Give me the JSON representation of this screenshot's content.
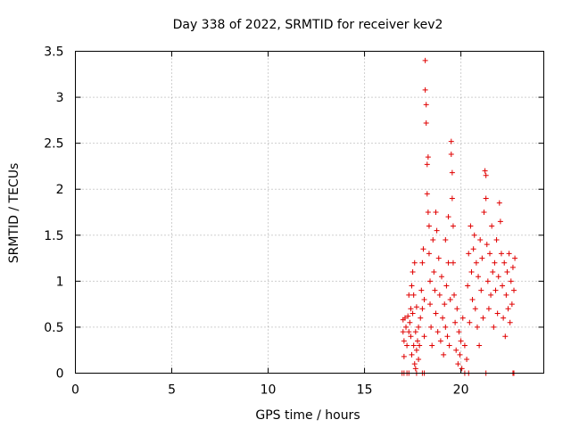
{
  "chart_data": {
    "type": "scatter",
    "title": "Day 338 of 2022, SRMTID for receiver kev2",
    "xlabel": "GPS time / hours",
    "ylabel": "SRMTID / TECUs",
    "xlim": [
      0,
      24.3
    ],
    "ylim": [
      0,
      3.5
    ],
    "xticks": [
      0,
      5,
      10,
      15,
      20
    ],
    "xtick_labels": [
      "0",
      "5",
      "10",
      "15",
      "20"
    ],
    "yticks": [
      0,
      0.5,
      1,
      1.5,
      2,
      2.5,
      3,
      3.5
    ],
    "ytick_labels": [
      "0",
      "0.5",
      "1",
      "1.5",
      "2",
      "2.5",
      "3",
      "3.5"
    ],
    "grid": true,
    "marker": "+",
    "color": "#e00000",
    "series": [
      {
        "name": "kev2",
        "points": [
          [
            16.95,
            0.0
          ],
          [
            17.05,
            0.0
          ],
          [
            17.2,
            0.0
          ],
          [
            17.3,
            0.0
          ],
          [
            17.7,
            0.0
          ],
          [
            18.0,
            0.0
          ],
          [
            18.1,
            0.0
          ],
          [
            20.2,
            0.0
          ],
          [
            20.4,
            0.0
          ],
          [
            21.3,
            0.0
          ],
          [
            22.7,
            0.0
          ],
          [
            22.75,
            0.0
          ],
          [
            17.0,
            0.58
          ],
          [
            17.0,
            0.45
          ],
          [
            17.05,
            0.35
          ],
          [
            17.05,
            0.18
          ],
          [
            17.1,
            0.6
          ],
          [
            17.15,
            0.5
          ],
          [
            17.2,
            0.3
          ],
          [
            17.25,
            0.62
          ],
          [
            17.3,
            0.45
          ],
          [
            17.3,
            0.85
          ],
          [
            17.35,
            0.55
          ],
          [
            17.4,
            0.7
          ],
          [
            17.4,
            0.4
          ],
          [
            17.45,
            0.95
          ],
          [
            17.45,
            0.2
          ],
          [
            17.5,
            1.1
          ],
          [
            17.5,
            0.65
          ],
          [
            17.55,
            0.85
          ],
          [
            17.55,
            0.3
          ],
          [
            17.6,
            1.2
          ],
          [
            17.6,
            0.1
          ],
          [
            17.65,
            0.05
          ],
          [
            17.65,
            0.45
          ],
          [
            17.7,
            0.72
          ],
          [
            17.7,
            0.25
          ],
          [
            17.75,
            0.35
          ],
          [
            17.8,
            0.5
          ],
          [
            17.8,
            0.15
          ],
          [
            17.85,
            0.3
          ],
          [
            17.9,
            0.6
          ],
          [
            17.95,
            0.9
          ],
          [
            18.0,
            1.2
          ],
          [
            18.0,
            0.7
          ],
          [
            18.05,
            1.35
          ],
          [
            18.1,
            0.4
          ],
          [
            18.1,
            0.8
          ],
          [
            18.15,
            3.4
          ],
          [
            18.15,
            3.08
          ],
          [
            18.2,
            2.92
          ],
          [
            18.2,
            2.72
          ],
          [
            18.25,
            2.27
          ],
          [
            18.25,
            1.95
          ],
          [
            18.3,
            2.35
          ],
          [
            18.3,
            1.75
          ],
          [
            18.35,
            1.6
          ],
          [
            18.35,
            1.3
          ],
          [
            18.4,
            1.0
          ],
          [
            18.4,
            0.75
          ],
          [
            18.45,
            0.5
          ],
          [
            18.5,
            0.3
          ],
          [
            18.55,
            1.45
          ],
          [
            18.6,
            1.1
          ],
          [
            18.65,
            0.9
          ],
          [
            18.7,
            1.75
          ],
          [
            18.7,
            0.65
          ],
          [
            18.75,
            1.55
          ],
          [
            18.8,
            0.45
          ],
          [
            18.85,
            1.25
          ],
          [
            18.9,
            0.85
          ],
          [
            18.95,
            0.35
          ],
          [
            19.0,
            1.05
          ],
          [
            19.05,
            0.6
          ],
          [
            19.1,
            0.2
          ],
          [
            19.15,
            0.75
          ],
          [
            19.2,
            1.45
          ],
          [
            19.2,
            0.5
          ],
          [
            19.25,
            0.95
          ],
          [
            19.3,
            0.4
          ],
          [
            19.35,
            1.7
          ],
          [
            19.35,
            1.2
          ],
          [
            19.4,
            0.3
          ],
          [
            19.45,
            0.8
          ],
          [
            19.5,
            2.52
          ],
          [
            19.5,
            2.38
          ],
          [
            19.55,
            2.18
          ],
          [
            19.55,
            1.9
          ],
          [
            19.6,
            1.6
          ],
          [
            19.6,
            1.2
          ],
          [
            19.65,
            0.85
          ],
          [
            19.7,
            0.55
          ],
          [
            19.75,
            0.25
          ],
          [
            19.8,
            0.7
          ],
          [
            19.85,
            0.1
          ],
          [
            19.9,
            0.45
          ],
          [
            19.95,
            0.2
          ],
          [
            20.0,
            0.35
          ],
          [
            20.05,
            0.05
          ],
          [
            20.1,
            0.6
          ],
          [
            20.2,
            0.3
          ],
          [
            20.3,
            0.15
          ],
          [
            20.35,
            0.95
          ],
          [
            20.4,
            1.3
          ],
          [
            20.45,
            0.55
          ],
          [
            20.5,
            1.6
          ],
          [
            20.55,
            1.1
          ],
          [
            20.6,
            0.8
          ],
          [
            20.65,
            1.35
          ],
          [
            20.7,
            1.5
          ],
          [
            20.75,
            0.7
          ],
          [
            20.8,
            1.2
          ],
          [
            20.85,
            0.5
          ],
          [
            20.9,
            1.05
          ],
          [
            20.95,
            0.3
          ],
          [
            21.0,
            1.45
          ],
          [
            21.05,
            0.9
          ],
          [
            21.1,
            1.25
          ],
          [
            21.15,
            0.6
          ],
          [
            21.2,
            1.75
          ],
          [
            21.25,
            2.2
          ],
          [
            21.3,
            2.15
          ],
          [
            21.3,
            1.9
          ],
          [
            21.35,
            1.4
          ],
          [
            21.4,
            1.0
          ],
          [
            21.45,
            0.7
          ],
          [
            21.5,
            1.3
          ],
          [
            21.55,
            0.85
          ],
          [
            21.6,
            1.6
          ],
          [
            21.65,
            1.1
          ],
          [
            21.7,
            0.5
          ],
          [
            21.75,
            1.2
          ],
          [
            21.8,
            0.9
          ],
          [
            21.85,
            1.45
          ],
          [
            21.9,
            0.65
          ],
          [
            21.95,
            1.05
          ],
          [
            22.0,
            1.85
          ],
          [
            22.05,
            1.65
          ],
          [
            22.1,
            1.3
          ],
          [
            22.15,
            0.95
          ],
          [
            22.2,
            0.6
          ],
          [
            22.25,
            1.2
          ],
          [
            22.3,
            0.4
          ],
          [
            22.35,
            0.85
          ],
          [
            22.4,
            1.1
          ],
          [
            22.45,
            0.7
          ],
          [
            22.5,
            1.3
          ],
          [
            22.55,
            0.55
          ],
          [
            22.6,
            1.0
          ],
          [
            22.65,
            0.75
          ],
          [
            22.7,
            1.15
          ],
          [
            22.75,
            0.9
          ],
          [
            22.8,
            1.25
          ]
        ]
      }
    ]
  }
}
